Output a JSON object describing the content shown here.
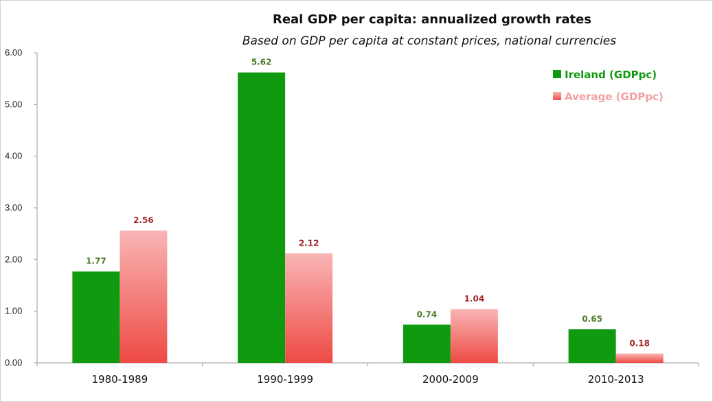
{
  "chart_data": {
    "type": "bar",
    "title": "Real GDP per capita: annualized growth rates",
    "subtitle": "Based on GDP per capita at constant prices, national currencies",
    "categories": [
      "1980-1989",
      "1990-1999",
      "2000-2009",
      "2010-2013"
    ],
    "series": [
      {
        "name": "Ireland (GDPpc)",
        "values": [
          1.77,
          5.62,
          0.74,
          0.65
        ],
        "labels": [
          "1.77",
          "5.62",
          "0.74",
          "0.65"
        ],
        "color": "#0f9a0f",
        "label_color": "#4e7a2a",
        "legend_color": "#0f9a0f"
      },
      {
        "name": "Average (GDPpc)",
        "values": [
          2.56,
          2.12,
          1.04,
          0.18
        ],
        "labels": [
          "2.56",
          "2.12",
          "1.04",
          "0.18"
        ],
        "color": "#f08a8a",
        "label_color": "#a3272b",
        "legend_color": "#f2a0a0"
      }
    ],
    "yticks": [
      "0.00",
      "1.00",
      "2.00",
      "3.00",
      "4.00",
      "5.00",
      "6.00"
    ],
    "ylim": [
      0,
      6
    ],
    "xlabel": "",
    "ylabel": "",
    "legend_position": "top-right",
    "grid": false
  }
}
